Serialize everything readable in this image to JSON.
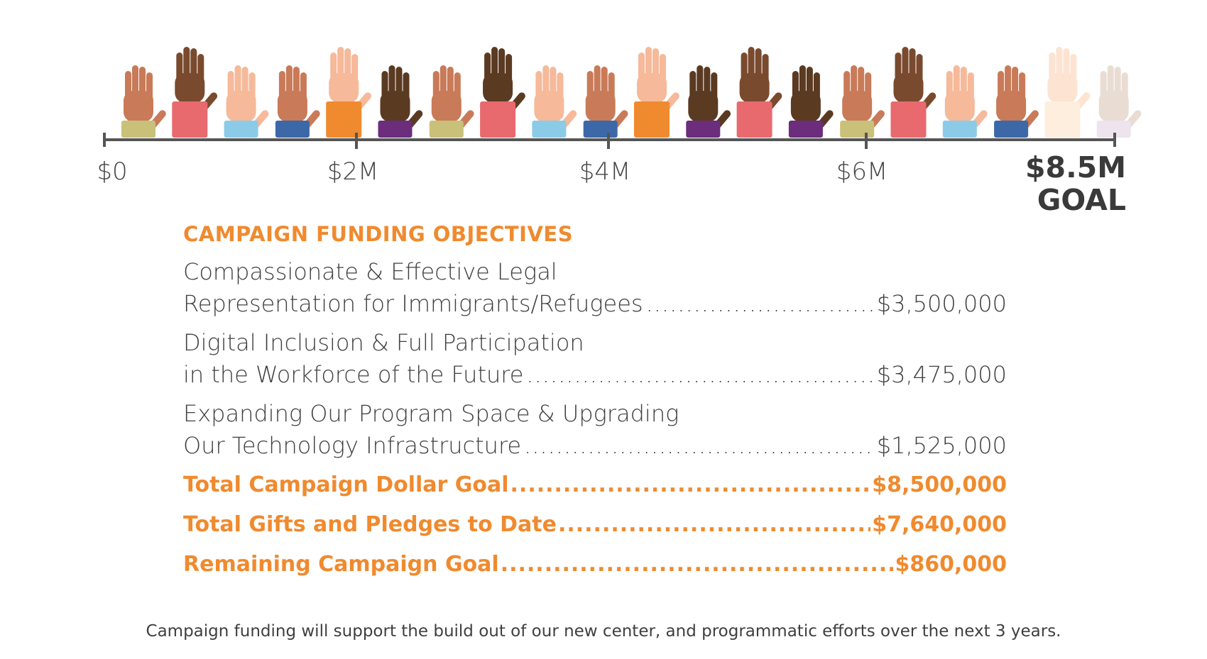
{
  "timeline": {
    "ticks": [
      "$0",
      "$2M",
      "$4M",
      "$6M"
    ],
    "goal_amount": "$8.5M",
    "goal_word": "GOAL"
  },
  "hands": [
    {
      "skin": "#c97a58",
      "sleeve": "#c9c07a",
      "tall": false
    },
    {
      "skin": "#7a4a2e",
      "sleeve": "#e86a6e",
      "tall": true
    },
    {
      "skin": "#f6b99a",
      "sleeve": "#8ccbe8",
      "tall": false
    },
    {
      "skin": "#c97a58",
      "sleeve": "#3c68a8",
      "tall": false
    },
    {
      "skin": "#f6b99a",
      "sleeve": "#f08a2e",
      "tall": true
    },
    {
      "skin": "#5b3a22",
      "sleeve": "#6b2d7c",
      "tall": false
    },
    {
      "skin": "#c97a58",
      "sleeve": "#c9c07a",
      "tall": false
    },
    {
      "skin": "#5b3a22",
      "sleeve": "#e86a6e",
      "tall": true
    },
    {
      "skin": "#f6b99a",
      "sleeve": "#8ccbe8",
      "tall": false
    },
    {
      "skin": "#c97a58",
      "sleeve": "#3c68a8",
      "tall": false
    },
    {
      "skin": "#f6b99a",
      "sleeve": "#f08a2e",
      "tall": true
    },
    {
      "skin": "#5b3a22",
      "sleeve": "#6b2d7c",
      "tall": false
    },
    {
      "skin": "#7a4a2e",
      "sleeve": "#e86a6e",
      "tall": true
    },
    {
      "skin": "#5b3a22",
      "sleeve": "#6b2d7c",
      "tall": false
    },
    {
      "skin": "#c97a58",
      "sleeve": "#c9c07a",
      "tall": false
    },
    {
      "skin": "#7a4a2e",
      "sleeve": "#e86a6e",
      "tall": true
    },
    {
      "skin": "#f6b99a",
      "sleeve": "#8ccbe8",
      "tall": false
    },
    {
      "skin": "#c97a58",
      "sleeve": "#3c68a8",
      "tall": false
    },
    {
      "skin": "#fde3d2",
      "sleeve": "#fdeedd",
      "tall": true
    },
    {
      "skin": "#e9ddd3",
      "sleeve": "#eee4ee",
      "tall": false
    }
  ],
  "objectives": {
    "heading": "CAMPAIGN FUNDING OBJECTIVES",
    "items": [
      {
        "line1": "Compassionate & Effective Legal",
        "line2": "Representation for Immigrants/Refugees",
        "amount": "$3,500,000"
      },
      {
        "line1": "Digital Inclusion & Full Participation",
        "line2": "in the Workforce of the Future",
        "amount": "$3,475,000"
      },
      {
        "line1": "Expanding Our Program Space & Upgrading",
        "line2": "Our Technology Infrastructure",
        "amount": "$1,525,000"
      }
    ],
    "totals": [
      {
        "label": "Total Campaign Dollar Goal",
        "amount": "$8,500,000"
      },
      {
        "label": "Total Gifts and Pledges to Date",
        "amount": "$7,640,000"
      },
      {
        "label": "Remaining Campaign Goal",
        "amount": "$860,000"
      }
    ]
  },
  "footnote": "Campaign funding will support the build out of our new center, and programmatic efforts over the next 3 years.",
  "colors": {
    "accent": "#f08a2e",
    "axis": "#555555",
    "text": "#3f3f3f"
  }
}
